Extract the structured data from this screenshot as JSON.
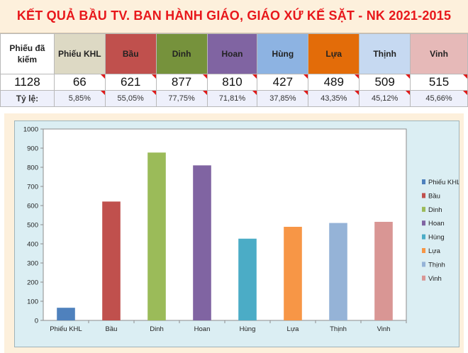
{
  "title": "KẾT QUẢ BẦU TV. BAN HÀNH GIÁO, GIÁO XỨ KẾ SẶT - NK 2021-2015",
  "table": {
    "headers": [
      "Phiếu đã kiếm",
      "Phiếu KHL",
      "Bầu",
      "Dinh",
      "Hoan",
      "Hùng",
      "Lựa",
      "Thịnh",
      "Vinh"
    ],
    "counts": [
      "1128",
      "66",
      "621",
      "877",
      "810",
      "427",
      "489",
      "509",
      "515"
    ],
    "ratio_label": "Tỷ lệ:",
    "ratios": [
      "5,85%",
      "55,05%",
      "77,75%",
      "71,81%",
      "37,85%",
      "43,35%",
      "45,12%",
      "45,66%"
    ],
    "header_colors": [
      "#ffffff",
      "#ddd9c4",
      "#c0504d",
      "#76923c",
      "#8064a2",
      "#8db3e2",
      "#e36c09",
      "#c6d9f1",
      "#e6b9b8"
    ]
  },
  "chart_data": {
    "type": "bar",
    "categories": [
      "Phiếu KHL",
      "Bầu",
      "Dinh",
      "Hoan",
      "Hùng",
      "Lựa",
      "Thịnh",
      "Vinh"
    ],
    "values": [
      66,
      621,
      877,
      810,
      427,
      489,
      509,
      515
    ],
    "colors": [
      "#4f81bd",
      "#c0504d",
      "#9bbb59",
      "#8064a2",
      "#4bacc6",
      "#f79646",
      "#95b3d7",
      "#d99694"
    ],
    "ylim": [
      0,
      1000
    ],
    "yticks": [
      0,
      100,
      200,
      300,
      400,
      500,
      600,
      700,
      800,
      900,
      1000
    ],
    "legend": [
      "Phiếu KHL",
      "Bầu",
      "Dinh",
      "Hoan",
      "Hùng",
      "Lựa",
      "Thịnh",
      "Vinh"
    ],
    "legend_position": "right",
    "grid": false
  }
}
